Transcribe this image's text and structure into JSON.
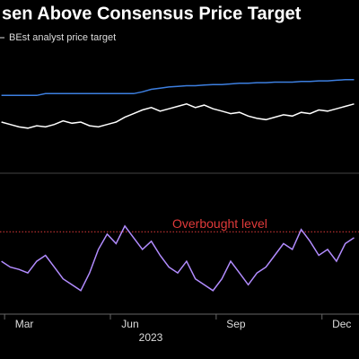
{
  "chart_data": [
    {
      "type": "line",
      "title": "sen Above Consensus Price Target",
      "x": [
        2.35,
        2.6,
        2.85,
        3.1,
        3.35,
        3.6,
        3.85,
        4.1,
        4.35,
        4.6,
        4.85,
        5.1,
        5.35,
        5.6,
        5.85,
        6.1,
        6.35,
        6.6,
        6.85,
        7.1,
        7.35,
        7.6,
        7.85,
        8.1,
        8.35,
        8.6,
        8.85,
        9.1,
        9.35,
        9.6,
        9.85,
        10.1,
        10.35,
        10.6,
        10.85,
        11.1,
        11.35,
        11.6,
        11.85,
        12.1,
        12.35
      ],
      "xlim": [
        2.31,
        12.49
      ],
      "ylim": [
        0,
        100
      ],
      "series": [
        {
          "name": "BEst analyst price target",
          "color": "#3d7fe0",
          "values": [
            62,
            62,
            62,
            62,
            62,
            63.5,
            63.5,
            63.5,
            63.5,
            63.5,
            63.5,
            63.5,
            63.5,
            63.5,
            63.5,
            63.5,
            65,
            67,
            68,
            69,
            69.5,
            70,
            70,
            70.5,
            71,
            71,
            71.5,
            72,
            72,
            72.5,
            72.5,
            73,
            73,
            73,
            73.5,
            73.5,
            74,
            74,
            74.5,
            75,
            75
          ]
        },
        {
          "color": "#ffffff",
          "values": [
            40,
            38,
            36,
            35,
            37,
            36,
            38,
            41,
            39,
            40,
            37,
            36,
            38,
            40,
            44,
            47,
            50,
            52,
            49,
            51,
            53,
            55,
            52,
            54,
            51,
            49,
            47,
            48,
            45,
            43,
            42,
            44,
            46,
            45,
            48,
            47,
            50,
            49,
            51,
            53,
            55
          ]
        }
      ]
    },
    {
      "type": "line",
      "x": [
        2.35,
        2.6,
        2.85,
        3.1,
        3.35,
        3.6,
        3.85,
        4.1,
        4.35,
        4.6,
        4.85,
        5.1,
        5.35,
        5.6,
        5.85,
        6.1,
        6.35,
        6.6,
        6.85,
        7.1,
        7.35,
        7.6,
        7.85,
        8.1,
        8.35,
        8.6,
        8.85,
        9.1,
        9.35,
        9.6,
        9.85,
        10.1,
        10.35,
        10.6,
        10.85,
        11.1,
        11.35,
        11.6,
        11.85,
        12.1,
        12.35
      ],
      "xlim": [
        2.31,
        12.49
      ],
      "xticks": [
        {
          "value": 3,
          "label": "Mar"
        },
        {
          "value": 6,
          "label": "Jun"
        },
        {
          "value": 9,
          "label": "Sep"
        },
        {
          "value": 12,
          "label": "Dec"
        }
      ],
      "xlabel": "2023",
      "ylim": [
        0,
        100
      ],
      "hline": {
        "value": 70,
        "label": "Overbought level",
        "color": "#e03a3a"
      },
      "series": [
        {
          "color": "#b28cff",
          "values": [
            45,
            40,
            38,
            35,
            45,
            50,
            40,
            30,
            25,
            20,
            35,
            55,
            68,
            60,
            75,
            65,
            55,
            62,
            50,
            40,
            35,
            45,
            30,
            25,
            20,
            30,
            45,
            35,
            25,
            35,
            40,
            50,
            60,
            55,
            72,
            62,
            50,
            55,
            45,
            60,
            65
          ]
        }
      ]
    }
  ]
}
